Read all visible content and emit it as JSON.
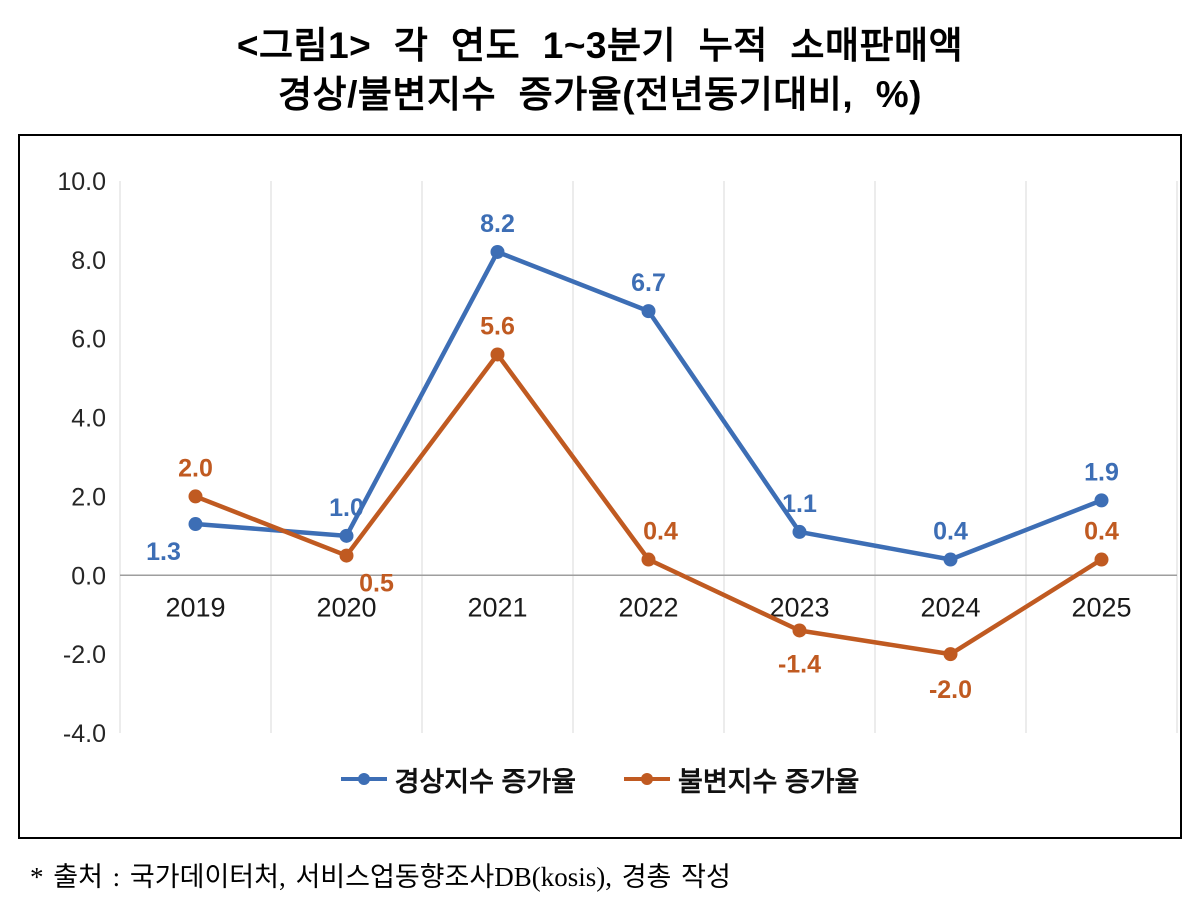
{
  "page": {
    "title_line1": "<그림1> 각 연도 1~3분기 누적 소매판매액",
    "title_line2": "경상/불변지수 증가율(전년동기대비, %)",
    "footnote": "* 출처 : 국가데이터처, 서비스업동향조사DB(kosis), 경총 작성"
  },
  "chart_data": {
    "type": "line",
    "title": "<그림1> 각 연도 1~3분기 누적 소매판매액 경상/불변지수 증가율(전년동기대비, %)",
    "categories": [
      "2019",
      "2020",
      "2021",
      "2022",
      "2023",
      "2024",
      "2025"
    ],
    "series": [
      {
        "name": "경상지수 증가율",
        "color": "#3D6EB5",
        "values": [
          1.3,
          1.0,
          8.2,
          6.7,
          1.1,
          0.4,
          1.9
        ],
        "label_offsets": [
          [
            -32,
            36
          ],
          [
            0,
            -20
          ],
          [
            0,
            -20
          ],
          [
            0,
            -20
          ],
          [
            0,
            -20
          ],
          [
            0,
            -20
          ],
          [
            0,
            -20
          ]
        ]
      },
      {
        "name": "불변지수 증가율",
        "color": "#C05A21",
        "values": [
          2.0,
          0.5,
          5.6,
          0.4,
          -1.4,
          -2.0,
          0.4
        ],
        "label_offsets": [
          [
            0,
            -20
          ],
          [
            30,
            36
          ],
          [
            0,
            -20
          ],
          [
            12,
            -20
          ],
          [
            0,
            42
          ],
          [
            0,
            44
          ],
          [
            0,
            -20
          ]
        ]
      }
    ],
    "ylim": [
      -4,
      10
    ],
    "yticks": [
      10,
      8,
      6,
      4,
      2,
      0,
      -2,
      -4
    ],
    "grid": "vertical",
    "grid_color": "#D9D9D9",
    "axis_color": "#9E9E9E",
    "tick_label_color": "#262626",
    "legend_position": "bottom"
  }
}
